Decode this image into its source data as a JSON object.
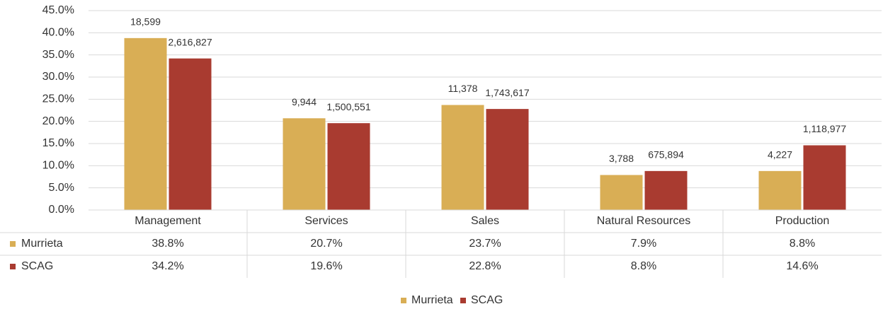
{
  "chart_data": {
    "type": "bar",
    "categories": [
      "Management",
      "Services",
      "Sales",
      "Natural Resources",
      "Production"
    ],
    "series": [
      {
        "name": "Murrieta",
        "color": "#d9ae55",
        "values": [
          38.8,
          20.7,
          23.7,
          7.9,
          8.8
        ],
        "value_labels": [
          "38.8%",
          "20.7%",
          "23.7%",
          "7.9%",
          "8.8%"
        ],
        "counts": [
          18599,
          9944,
          11378,
          3788,
          4227
        ],
        "count_labels": [
          "18,599",
          "9,944",
          "11,378",
          "3,788",
          "4,227"
        ]
      },
      {
        "name": "SCAG",
        "color": "#a93b30",
        "values": [
          34.2,
          19.6,
          22.8,
          8.8,
          14.6
        ],
        "value_labels": [
          "34.2%",
          "19.6%",
          "22.8%",
          "8.8%",
          "14.6%"
        ],
        "counts": [
          2616827,
          1500551,
          1743617,
          675894,
          1118977
        ],
        "count_labels": [
          "2,616,827",
          "1,500,551",
          "1,743,617",
          "675,894",
          "1,118,977"
        ]
      }
    ],
    "ylim": [
      0,
      45
    ],
    "yticks": [
      {
        "value": 0,
        "label": "0.0%"
      },
      {
        "value": 5,
        "label": "5.0%"
      },
      {
        "value": 10,
        "label": "10.0%"
      },
      {
        "value": 15,
        "label": "15.0%"
      },
      {
        "value": 20,
        "label": "20.0%"
      },
      {
        "value": 25,
        "label": "25.0%"
      },
      {
        "value": 30,
        "label": "30.0%"
      },
      {
        "value": 35,
        "label": "35.0%"
      },
      {
        "value": 40,
        "label": "40.0%"
      },
      {
        "value": 45,
        "label": "45.0%"
      }
    ],
    "grid": true,
    "legend": "bottom",
    "data_table": true
  }
}
